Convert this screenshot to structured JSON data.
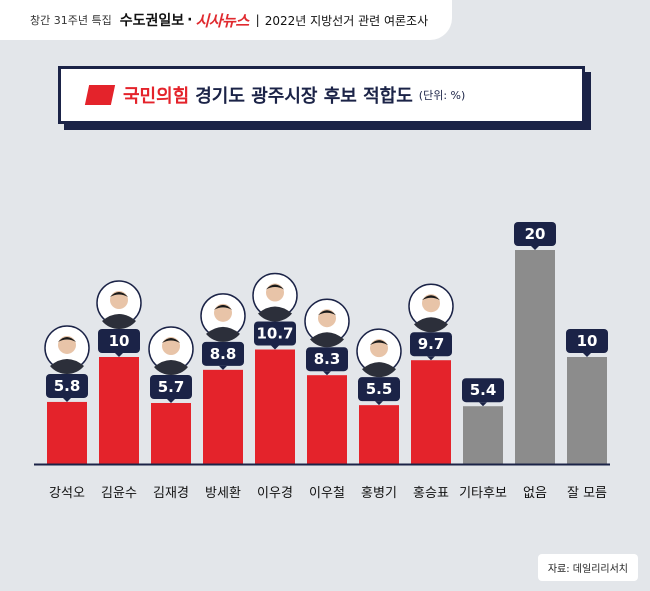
{
  "header": {
    "special": "창간 31주년 특집",
    "publisher1": "수도권일보",
    "publisher2": "시사뉴스",
    "separator": "|",
    "survey": "2022년 지방선거 관련 여론조사"
  },
  "title": {
    "party": "국민의힘",
    "rest": "경기도 광주시장 후보 적합도",
    "unit": "(단위: %)"
  },
  "colors": {
    "candidate": "#e4232b",
    "other": "#8c8c8c",
    "label_bg": "#1b2347",
    "title_border": "#1b2347"
  },
  "chart_data": {
    "type": "bar",
    "categories": [
      "강석오",
      "김윤수",
      "김재경",
      "방세환",
      "이우경",
      "이우철",
      "홍병기",
      "홍승표",
      "기타후보",
      "없음",
      "잘 모름"
    ],
    "values": [
      5.8,
      10,
      5.7,
      8.8,
      10.7,
      8.3,
      5.5,
      9.7,
      5.4,
      20,
      10
    ],
    "value_labels": [
      "5.8",
      "10",
      "5.7",
      "8.8",
      "10.7",
      "8.3",
      "5.5",
      "9.7",
      "5.4",
      "20",
      "10"
    ],
    "bar_groups": [
      "candidate",
      "candidate",
      "candidate",
      "candidate",
      "candidate",
      "candidate",
      "candidate",
      "candidate",
      "other",
      "other",
      "other"
    ],
    "title": "국민의힘 경기도 광주시장 후보 적합도",
    "ylim": [
      0,
      20
    ],
    "grid": false
  },
  "source": "자료: 데일리리서치"
}
